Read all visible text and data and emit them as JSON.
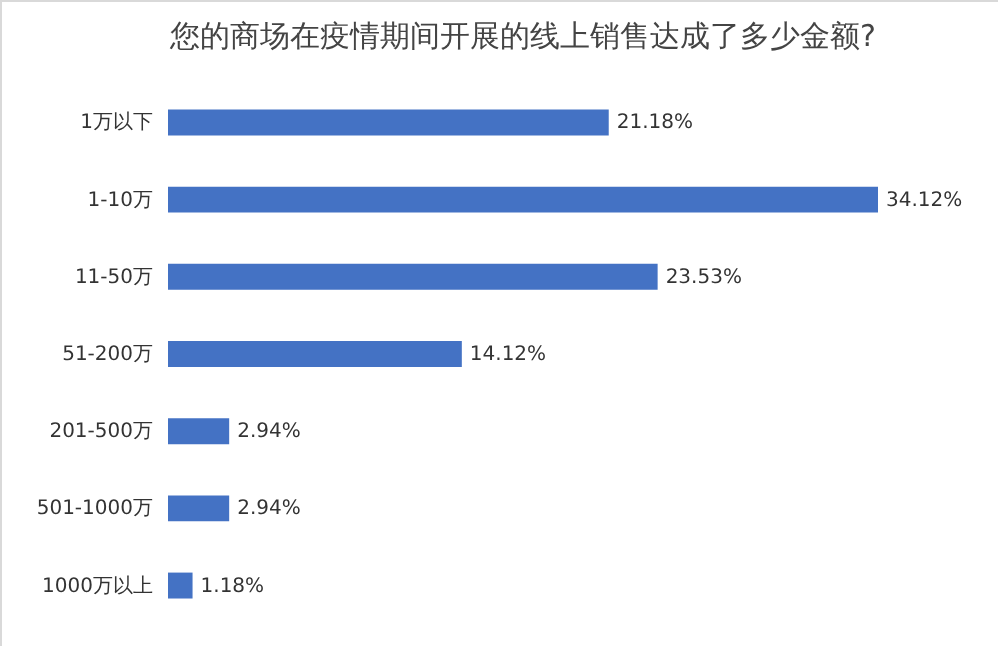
{
  "chart_data": {
    "type": "bar",
    "orientation": "horizontal",
    "title": "您的商场在疫情期间开展的线上销售达成了多少金额?",
    "categories": [
      "1万以下",
      "1-10万",
      "11-50万",
      "51-200万",
      "201-500万",
      "501-1000万",
      "1000万以上"
    ],
    "values": [
      21.18,
      34.12,
      23.53,
      14.12,
      2.94,
      2.94,
      1.18
    ],
    "value_labels": [
      "21.18%",
      "34.12%",
      "23.53%",
      "14.12%",
      "2.94%",
      "2.94%",
      "1.18%"
    ],
    "color": "#4472c4"
  }
}
